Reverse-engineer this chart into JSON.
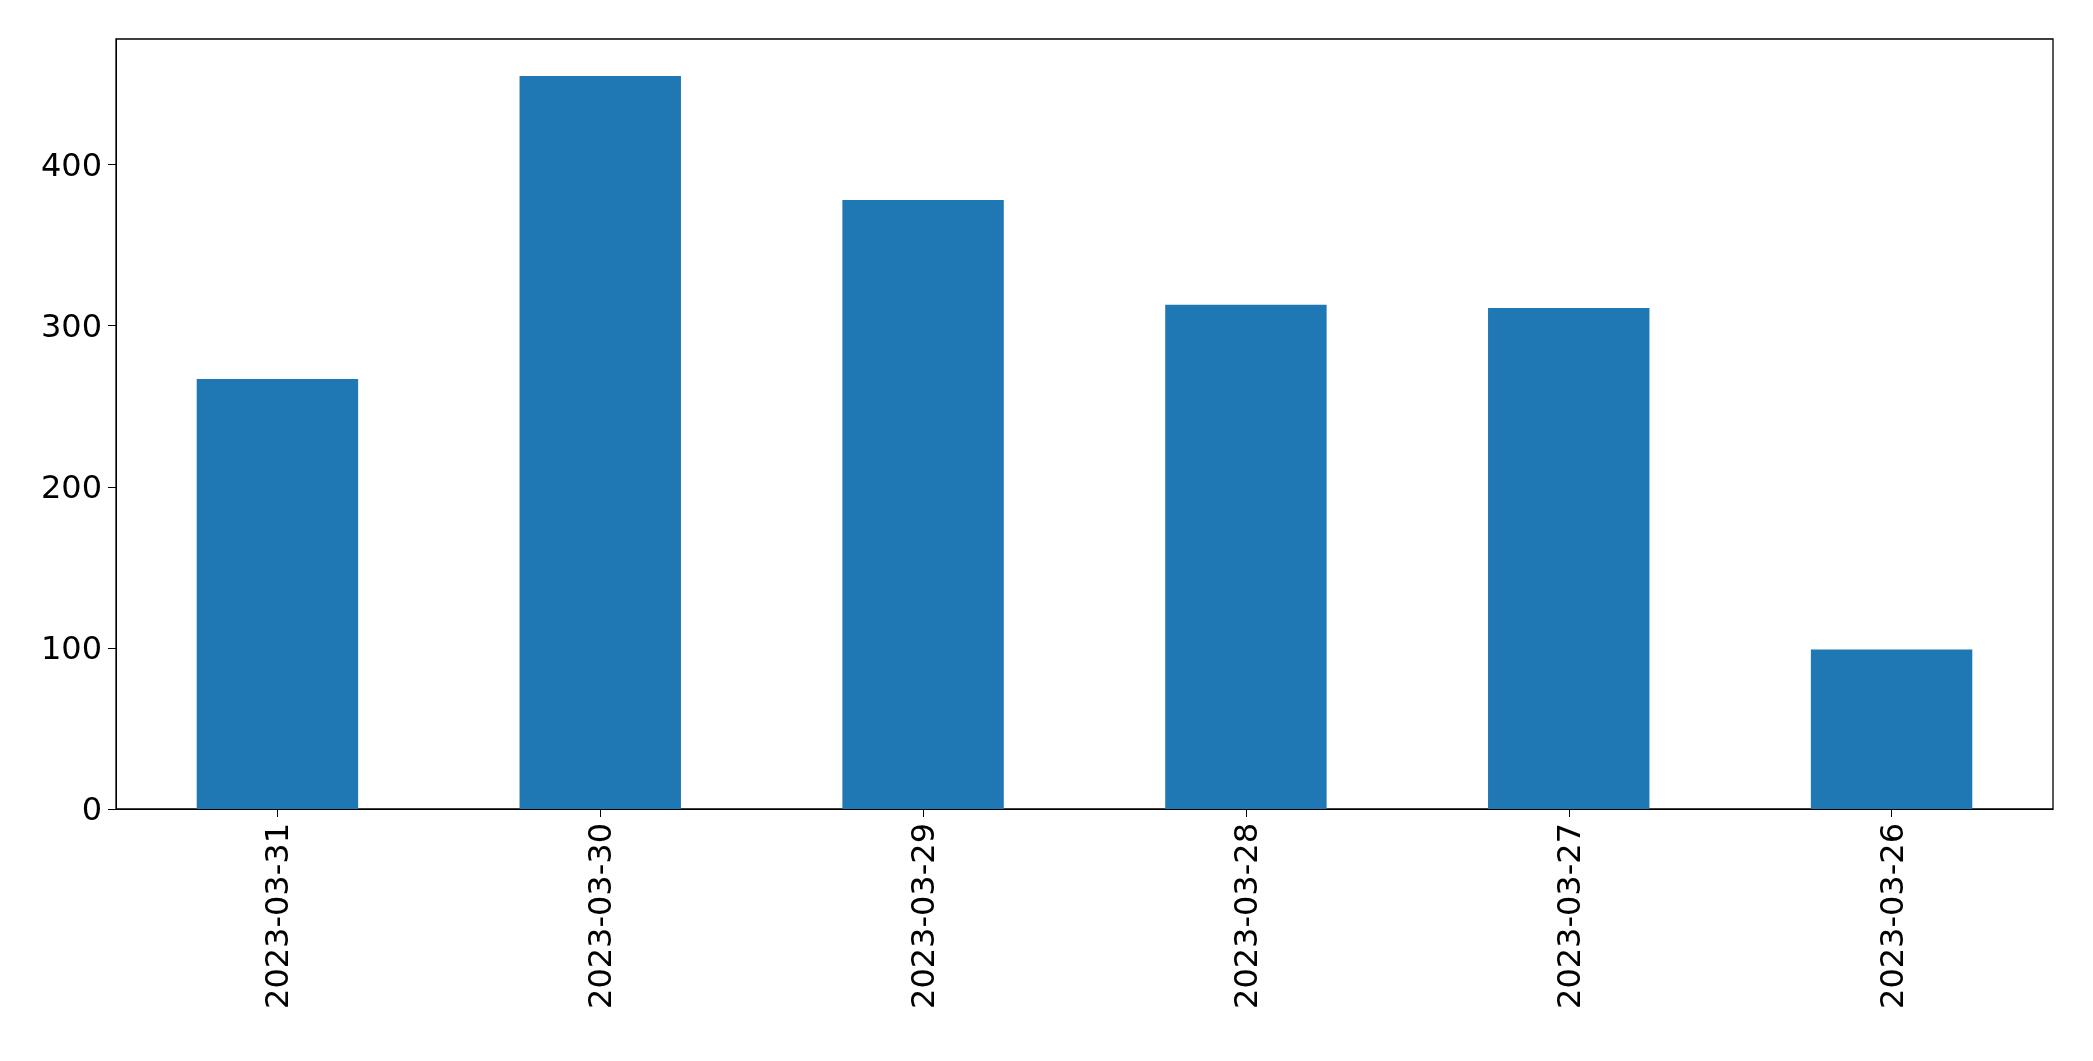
{
  "chart_data": {
    "type": "bar",
    "categories": [
      "2023-03-31",
      "2023-03-30",
      "2023-03-29",
      "2023-03-28",
      "2023-03-27",
      "2023-03-26"
    ],
    "values": [
      267,
      455,
      378,
      313,
      311,
      99
    ],
    "color": "#1f77b4",
    "ylim": [
      0,
      478
    ],
    "yticks": [
      0,
      100,
      200,
      300,
      400
    ],
    "grid": false
  }
}
